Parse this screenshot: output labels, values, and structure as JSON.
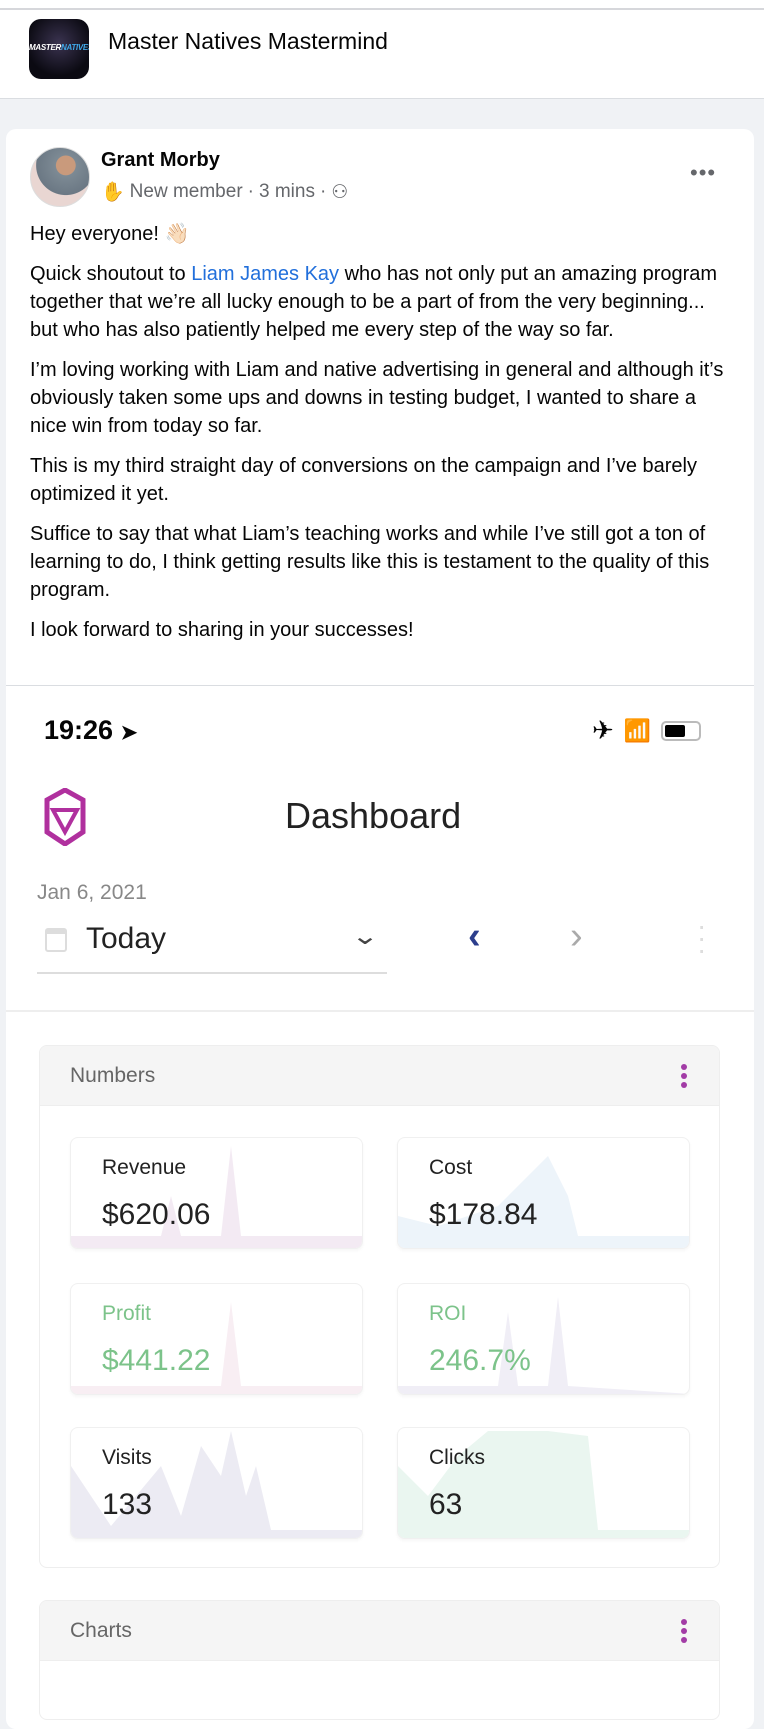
{
  "group": {
    "title": "Master Natives Mastermind",
    "logo_text": "MASTERNATIVES"
  },
  "post": {
    "author": "Grant Morby",
    "badge": "New member",
    "time": "3 mins",
    "paragraphs": [
      {
        "text": "Hey everyone! 👋🏻"
      },
      {
        "before": "Quick shoutout to ",
        "link": "Liam James Kay",
        "after": " who has not only put an amazing program together that we’re all lucky enough to be a part of from the very beginning... but who has also patiently helped me every step of the way so far."
      },
      {
        "text": "I’m loving working with Liam and native advertising in general and although it’s obviously taken some ups and downs in testing budget, I wanted to share a nice win from today so far."
      },
      {
        "text": "This is my third straight day of conversions on the campaign and I’ve barely optimized it yet."
      },
      {
        "text": "Suffice to say that what Liam’s teaching works and while I’ve still got a ton of learning to do, I think getting results like this is testament to the quality of this program."
      },
      {
        "text": "I look forward to sharing in your successes!"
      }
    ]
  },
  "screenshot": {
    "time": "19:26",
    "title": "Dashboard",
    "date": "Jan 6, 2021",
    "range": "Today",
    "accent": "#a23ca6",
    "numbers_title": "Numbers",
    "charts_title": "Charts",
    "tiles": [
      {
        "label": "Revenue",
        "value": "$620.06",
        "color": "#f3eaf3"
      },
      {
        "label": "Cost",
        "value": "$178.84",
        "color": "#edf4fa"
      },
      {
        "label": "Profit",
        "value": "$441.22",
        "color": "#f8eef3"
      },
      {
        "label": "ROI",
        "value": "246.7%",
        "color": "#f0eef6"
      },
      {
        "label": "Visits",
        "value": "133",
        "color": "#ecebf3"
      },
      {
        "label": "Clicks",
        "value": "63",
        "color": "#eaf6f0"
      }
    ],
    "positive_color": "#7cc38a"
  }
}
